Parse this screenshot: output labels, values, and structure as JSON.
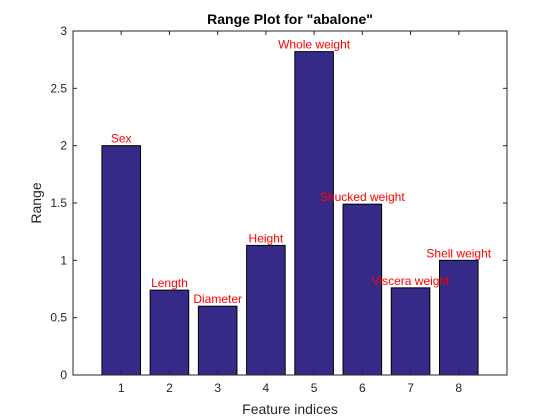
{
  "chart_data": {
    "type": "bar",
    "title": "Range Plot for \"abalone\"",
    "xlabel": "Feature indices",
    "ylabel": "Range",
    "categories": [
      "1",
      "2",
      "3",
      "4",
      "5",
      "6",
      "7",
      "8"
    ],
    "values": [
      2.0,
      0.74,
      0.6,
      1.13,
      2.82,
      1.49,
      0.76,
      1.0
    ],
    "labels": [
      "Sex",
      "Length",
      "Diameter",
      "Height",
      "Whole weight",
      "Shucked weight",
      "Viscera weight",
      "Shell weight"
    ],
    "ylim": [
      0,
      3
    ],
    "yticks": [
      0,
      0.5,
      1,
      1.5,
      2,
      2.5,
      3
    ],
    "ytick_labels": [
      "0",
      "0.5",
      "1",
      "1.5",
      "2",
      "2.5",
      "3"
    ],
    "xlim": [
      0,
      9
    ],
    "grid": false,
    "bar_color": "#352a87",
    "label_color": "#ff0000"
  }
}
